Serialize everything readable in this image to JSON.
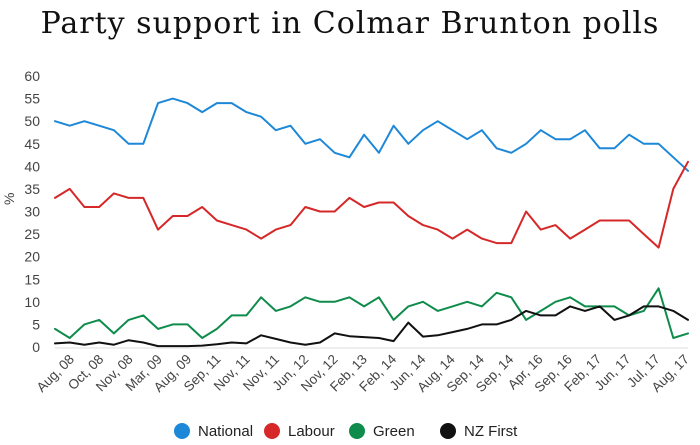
{
  "chart_data": {
    "type": "line",
    "title": "Party support in Colmar Brunton polls",
    "xlabel": "",
    "ylabel": "%",
    "ylim": [
      0,
      60
    ],
    "yticks": [
      0,
      5,
      10,
      15,
      20,
      25,
      30,
      35,
      40,
      45,
      50,
      55,
      60
    ],
    "grid": false,
    "legend_position": "bottom",
    "x_tick_labels": [
      "Aug, 08",
      "Oct, 08",
      "Nov, 08",
      "Mar, 09",
      "Aug, 09",
      "Sep, 11",
      "Nov, 11",
      "Nov, 11",
      "Jun, 12",
      "Nov, 12",
      "Feb, 13",
      "Feb, 14",
      "Jun, 14",
      "Aug, 14",
      "Sep, 14",
      "Sep, 14",
      "Apr, 16",
      "Sep, 16",
      "Feb, 17",
      "Jun, 17",
      "Jul, 17",
      "Aug, 17"
    ],
    "series": [
      {
        "name": "National",
        "color": "#1e88d8",
        "values": [
          50,
          49,
          50,
          49,
          48,
          45,
          45,
          54,
          55,
          54,
          52,
          54,
          54,
          52,
          51,
          48,
          49,
          45,
          46,
          43,
          42,
          47,
          43,
          49,
          45,
          48,
          50,
          48,
          46,
          48,
          44,
          43,
          45,
          48,
          46,
          46,
          48,
          44,
          44,
          47,
          45,
          45,
          42,
          39
        ]
      },
      {
        "name": "Labour",
        "color": "#d62828",
        "values": [
          33,
          35,
          31,
          31,
          34,
          33,
          33,
          26,
          29,
          29,
          31,
          28,
          27,
          26,
          24,
          26,
          27,
          31,
          30,
          30,
          33,
          31,
          32,
          32,
          29,
          27,
          26,
          24,
          26,
          24,
          23,
          23,
          30,
          26,
          27,
          24,
          26,
          28,
          28,
          28,
          25,
          22,
          35,
          41
        ]
      },
      {
        "name": "Green",
        "color": "#0f8c4c",
        "values": [
          4,
          2,
          5,
          6,
          3,
          6,
          7,
          4,
          5,
          5,
          2,
          4,
          7,
          7,
          11,
          8,
          9,
          11,
          10,
          10,
          11,
          9,
          11,
          6,
          9,
          10,
          8,
          9,
          10,
          9,
          12,
          11,
          6,
          8,
          10,
          11,
          9,
          9,
          9,
          7,
          8,
          13,
          2,
          3
        ]
      },
      {
        "name": "NZ First",
        "color": "#111111",
        "values": [
          0.8,
          1,
          0.5,
          1,
          0.5,
          1.5,
          1,
          0.2,
          0.2,
          0.2,
          0.3,
          0.6,
          1,
          0.8,
          2.6,
          1.8,
          1,
          0.5,
          1,
          3,
          2.4,
          2.2,
          2,
          1.3,
          5.4,
          2.3,
          2.6,
          3.3,
          4,
          5,
          5,
          6,
          8,
          7,
          7,
          9,
          8,
          9,
          6,
          7,
          9,
          9,
          8,
          6
        ]
      }
    ]
  }
}
